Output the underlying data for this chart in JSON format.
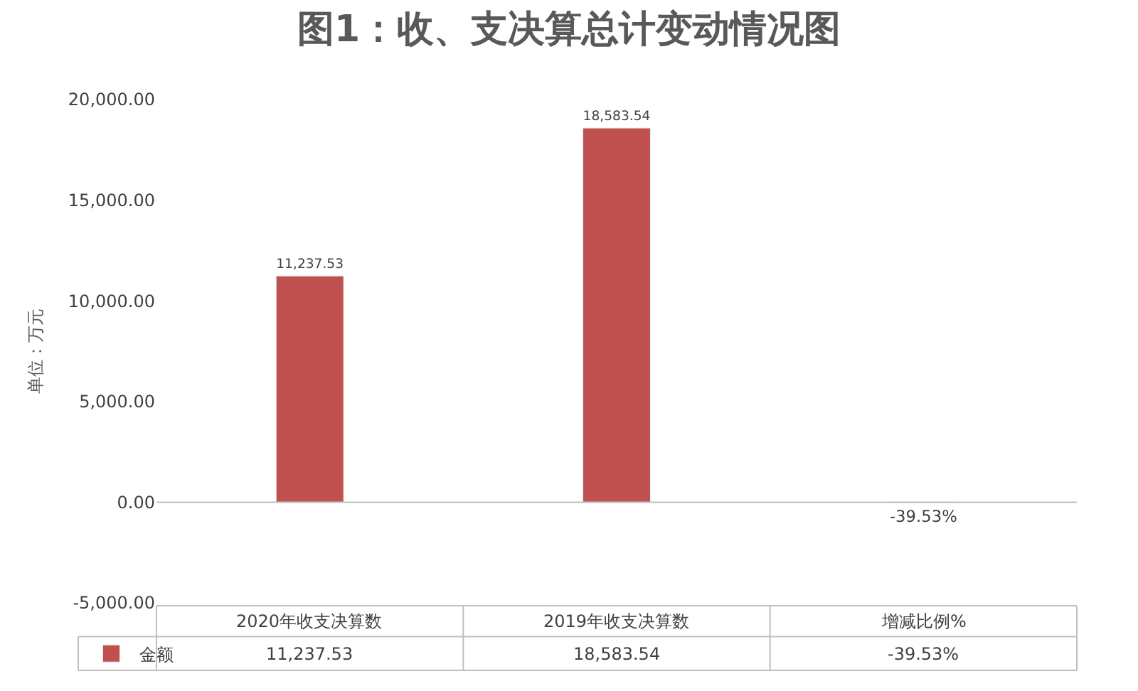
{
  "chart_data": {
    "type": "bar",
    "title": "图1：收、支决算总计变动情况图",
    "ylabel": "单位：万元",
    "categories": [
      "2020年收支决算数",
      "2019年收支决算数",
      "增减比例%"
    ],
    "series": [
      {
        "name": "金额",
        "color": "#c0504d",
        "values": [
          11237.53,
          18583.54,
          -39.53
        ],
        "value_labels": [
          "11,237.53",
          "18,583.54",
          "-39.53%"
        ]
      }
    ],
    "ylim": [
      -5000,
      20000
    ],
    "yticks": [
      {
        "value": -5000,
        "label": "-5,000.00"
      },
      {
        "value": 0,
        "label": "0.00"
      },
      {
        "value": 5000,
        "label": "5,000.00"
      },
      {
        "value": 10000,
        "label": "10,000.00"
      },
      {
        "value": 15000,
        "label": "15,000.00"
      },
      {
        "value": 20000,
        "label": "20,000.00"
      }
    ],
    "legend": "bottom left"
  }
}
